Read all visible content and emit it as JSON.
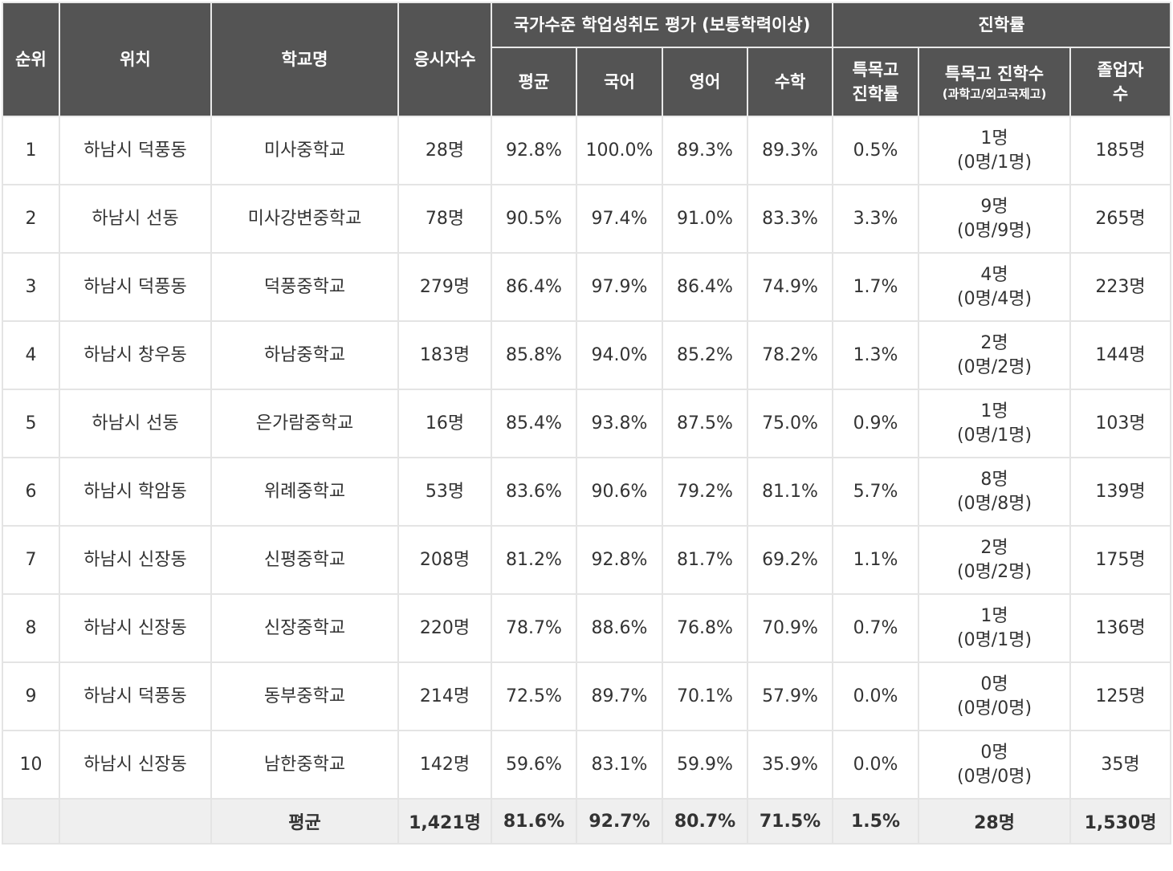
{
  "headers": {
    "rank": "순위",
    "location": "위치",
    "school": "학교명",
    "test_takers": "응시자수",
    "assessment_group": "국가수준 학업성취도 평가 (보통학력이상)",
    "avg": "평균",
    "korean": "국어",
    "english": "영어",
    "math": "수학",
    "advancement_group": "진학률",
    "special_rate_line1": "특목고",
    "special_rate_line2": "진학률",
    "special_count": "특목고 진학수",
    "special_count_sub": "(과학고/외고국제고)",
    "graduates_line1": "졸업자",
    "graduates_line2": "수"
  },
  "rows": [
    {
      "rank": "1",
      "location": "하남시 덕풍동",
      "school": "미사중학교",
      "test_takers": "28명",
      "avg": "92.8%",
      "korean": "100.0%",
      "english": "89.3%",
      "math": "89.3%",
      "special_rate": "0.5%",
      "special_count": "1명",
      "special_breakdown": "(0명/1명)",
      "graduates": "185명"
    },
    {
      "rank": "2",
      "location": "하남시 선동",
      "school": "미사강변중학교",
      "test_takers": "78명",
      "avg": "90.5%",
      "korean": "97.4%",
      "english": "91.0%",
      "math": "83.3%",
      "special_rate": "3.3%",
      "special_count": "9명",
      "special_breakdown": "(0명/9명)",
      "graduates": "265명"
    },
    {
      "rank": "3",
      "location": "하남시 덕풍동",
      "school": "덕풍중학교",
      "test_takers": "279명",
      "avg": "86.4%",
      "korean": "97.9%",
      "english": "86.4%",
      "math": "74.9%",
      "special_rate": "1.7%",
      "special_count": "4명",
      "special_breakdown": "(0명/4명)",
      "graduates": "223명"
    },
    {
      "rank": "4",
      "location": "하남시 창우동",
      "school": "하남중학교",
      "test_takers": "183명",
      "avg": "85.8%",
      "korean": "94.0%",
      "english": "85.2%",
      "math": "78.2%",
      "special_rate": "1.3%",
      "special_count": "2명",
      "special_breakdown": "(0명/2명)",
      "graduates": "144명"
    },
    {
      "rank": "5",
      "location": "하남시 선동",
      "school": "은가람중학교",
      "test_takers": "16명",
      "avg": "85.4%",
      "korean": "93.8%",
      "english": "87.5%",
      "math": "75.0%",
      "special_rate": "0.9%",
      "special_count": "1명",
      "special_breakdown": "(0명/1명)",
      "graduates": "103명"
    },
    {
      "rank": "6",
      "location": "하남시 학암동",
      "school": "위례중학교",
      "test_takers": "53명",
      "avg": "83.6%",
      "korean": "90.6%",
      "english": "79.2%",
      "math": "81.1%",
      "special_rate": "5.7%",
      "special_count": "8명",
      "special_breakdown": "(0명/8명)",
      "graduates": "139명"
    },
    {
      "rank": "7",
      "location": "하남시 신장동",
      "school": "신평중학교",
      "test_takers": "208명",
      "avg": "81.2%",
      "korean": "92.8%",
      "english": "81.7%",
      "math": "69.2%",
      "special_rate": "1.1%",
      "special_count": "2명",
      "special_breakdown": "(0명/2명)",
      "graduates": "175명"
    },
    {
      "rank": "8",
      "location": "하남시 신장동",
      "school": "신장중학교",
      "test_takers": "220명",
      "avg": "78.7%",
      "korean": "88.6%",
      "english": "76.8%",
      "math": "70.9%",
      "special_rate": "0.7%",
      "special_count": "1명",
      "special_breakdown": "(0명/1명)",
      "graduates": "136명"
    },
    {
      "rank": "9",
      "location": "하남시 덕풍동",
      "school": "동부중학교",
      "test_takers": "214명",
      "avg": "72.5%",
      "korean": "89.7%",
      "english": "70.1%",
      "math": "57.9%",
      "special_rate": "0.0%",
      "special_count": "0명",
      "special_breakdown": "(0명/0명)",
      "graduates": "125명"
    },
    {
      "rank": "10",
      "location": "하남시 신장동",
      "school": "남한중학교",
      "test_takers": "142명",
      "avg": "59.6%",
      "korean": "83.1%",
      "english": "59.9%",
      "math": "35.9%",
      "special_rate": "0.0%",
      "special_count": "0명",
      "special_breakdown": "(0명/0명)",
      "graduates": "35명"
    }
  ],
  "footer": {
    "label": "평균",
    "test_takers": "1,421명",
    "avg": "81.6%",
    "korean": "92.7%",
    "english": "80.7%",
    "math": "71.5%",
    "special_rate": "1.5%",
    "special_count": "28명",
    "graduates": "1,530명"
  },
  "colors": {
    "header_bg": "#545454",
    "header_text": "#ffffff",
    "footer_bg": "#efefef",
    "border": "#e4e4e4"
  }
}
